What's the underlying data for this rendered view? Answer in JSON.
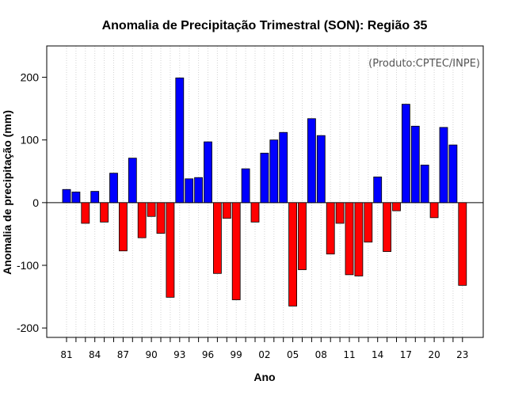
{
  "chart_data": {
    "type": "bar",
    "title": "Anomalia de Precipitação Trimestral (SON): Região 35",
    "xlabel": "Ano",
    "ylabel": "Anomalia de precipitação (mm)",
    "annotation": "(Produto:CPTEC/INPE)",
    "ylim": [
      -215,
      250
    ],
    "yticks": [
      -200,
      -100,
      0,
      100,
      200
    ],
    "grid": "vertical dotted",
    "positive_color": "#0000ff",
    "negative_color": "#ff0000",
    "categories": [
      "1981",
      "1982",
      "1983",
      "1984",
      "1985",
      "1986",
      "1987",
      "1988",
      "1989",
      "1990",
      "1991",
      "1992",
      "1993",
      "1994",
      "1995",
      "1996",
      "1997",
      "1998",
      "1999",
      "2000",
      "2001",
      "2002",
      "2003",
      "2004",
      "2005",
      "2006",
      "2007",
      "2008",
      "2009",
      "2010",
      "2011",
      "2012",
      "2013",
      "2014",
      "2015",
      "2016",
      "2017",
      "2018",
      "2019",
      "2020",
      "2021",
      "2022",
      "2023"
    ],
    "xtick_labels": [
      "81",
      "",
      "",
      "84",
      "",
      "",
      "87",
      "",
      "",
      "90",
      "",
      "",
      "93",
      "",
      "",
      "96",
      "",
      "",
      "99",
      "",
      "",
      "02",
      "",
      "",
      "05",
      "",
      "",
      "08",
      "",
      "",
      "11",
      "",
      "",
      "14",
      "",
      "",
      "17",
      "",
      "",
      "20",
      "",
      "",
      "23"
    ],
    "values": [
      21,
      17,
      -33,
      18,
      -31,
      47,
      -77,
      71,
      -56,
      -22,
      -49,
      -151,
      199,
      38,
      40,
      97,
      -113,
      -25,
      -155,
      54,
      -31,
      79,
      100,
      112,
      -165,
      -107,
      134,
      107,
      -82,
      -33,
      -115,
      -117,
      -63,
      41,
      -78,
      -13,
      157,
      122,
      60,
      -24,
      120,
      92,
      -132
    ]
  }
}
